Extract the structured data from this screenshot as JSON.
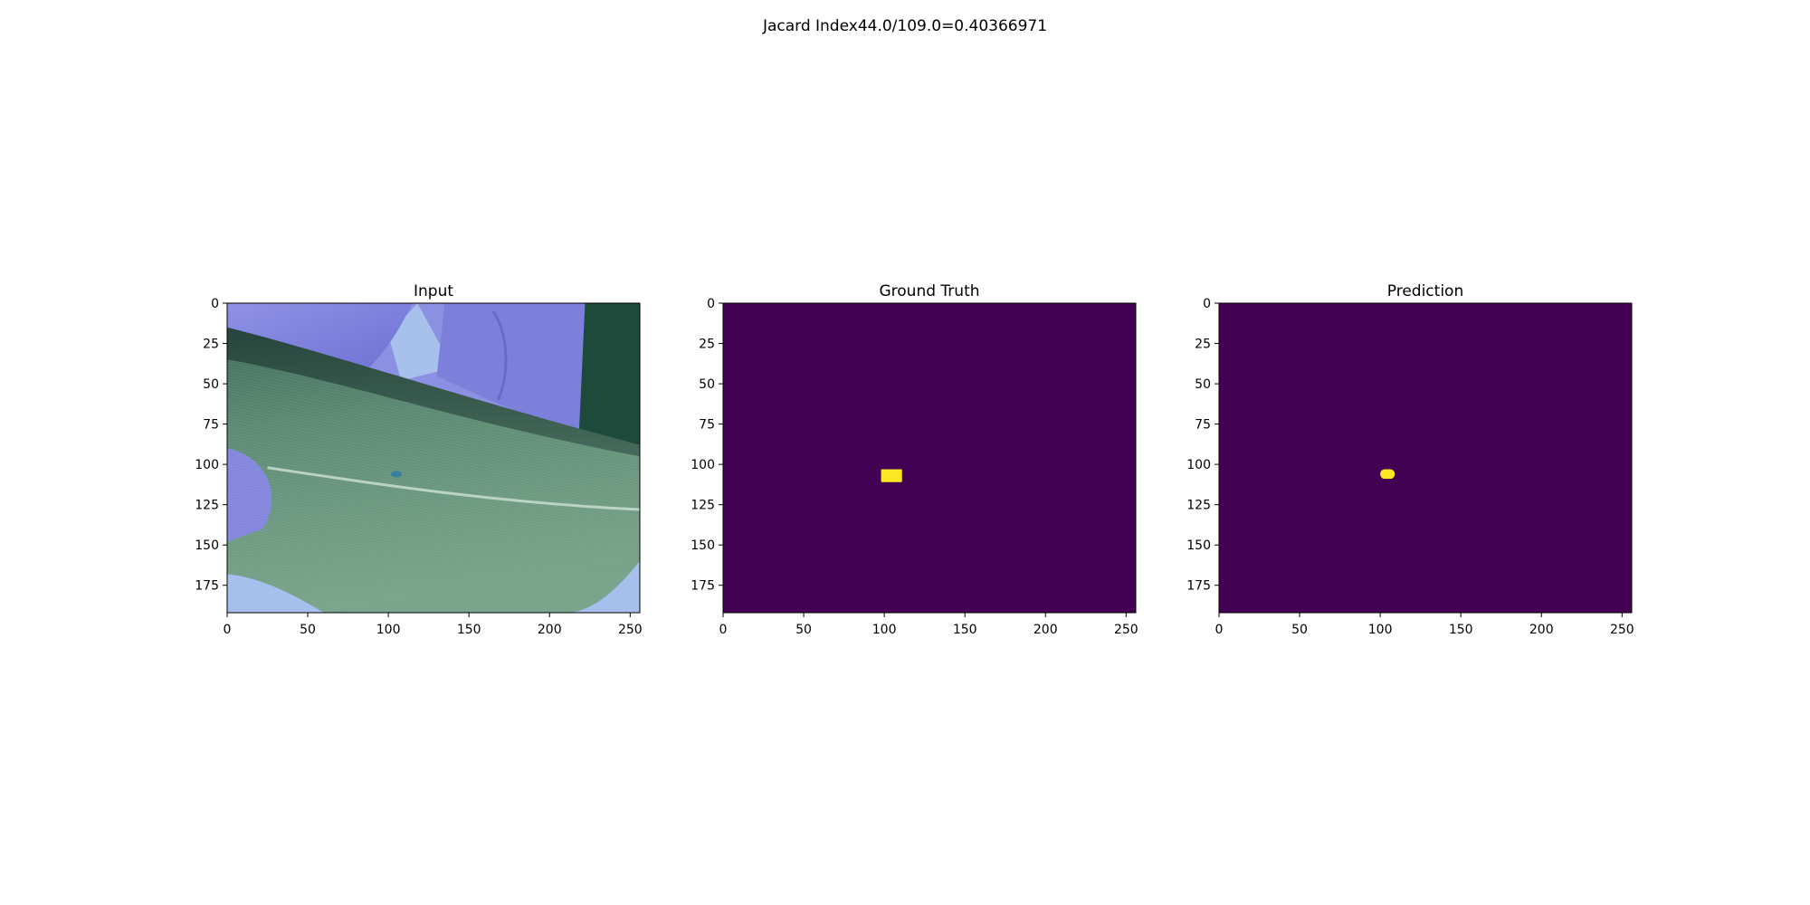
{
  "suptitle": "Jacard Index44.0/109.0=0.40366971",
  "colors": {
    "background_class": "#440154",
    "foreground_class": "#fde725",
    "axis": "#000000"
  },
  "chart_data": [
    {
      "type": "heatmap",
      "title": "Input",
      "content": "rgb-image",
      "xlim": [
        0,
        256
      ],
      "ylim": [
        192,
        0
      ],
      "xticks": [
        0,
        50,
        100,
        150,
        200,
        250
      ],
      "yticks": [
        0,
        25,
        50,
        75,
        100,
        125,
        150,
        175
      ],
      "xtick_labels": [
        "0",
        "50",
        "100",
        "150",
        "200",
        "250"
      ],
      "ytick_labels": [
        "0",
        "25",
        "50",
        "75",
        "100",
        "125",
        "150",
        "175"
      ],
      "spot": {
        "x": 105,
        "y": 106
      }
    },
    {
      "type": "heatmap",
      "title": "Ground Truth",
      "content": "mask",
      "xlim": [
        0,
        256
      ],
      "ylim": [
        192,
        0
      ],
      "xticks": [
        0,
        50,
        100,
        150,
        200,
        250
      ],
      "yticks": [
        0,
        25,
        50,
        75,
        100,
        125,
        150,
        175
      ],
      "xtick_labels": [
        "0",
        "50",
        "100",
        "150",
        "200",
        "250"
      ],
      "ytick_labels": [
        "0",
        "25",
        "50",
        "75",
        "100",
        "125",
        "150",
        "175"
      ],
      "mask_region": {
        "x": [
          98,
          111
        ],
        "y": [
          103,
          111
        ]
      }
    },
    {
      "type": "heatmap",
      "title": "Prediction",
      "content": "mask",
      "xlim": [
        0,
        256
      ],
      "ylim": [
        192,
        0
      ],
      "xticks": [
        0,
        50,
        100,
        150,
        200,
        250
      ],
      "yticks": [
        0,
        25,
        50,
        75,
        100,
        125,
        150,
        175
      ],
      "xtick_labels": [
        "0",
        "50",
        "100",
        "150",
        "200",
        "250"
      ],
      "ytick_labels": [
        "0",
        "25",
        "50",
        "75",
        "100",
        "125",
        "150",
        "175"
      ],
      "mask_region": {
        "x": [
          100,
          109
        ],
        "y": [
          103,
          109
        ]
      }
    }
  ]
}
